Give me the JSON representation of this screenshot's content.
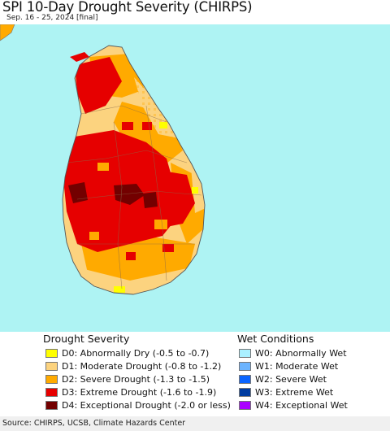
{
  "header": {
    "title": "SPI 10-Day Drought Severity (CHIRPS)",
    "subtitle": "Sep. 16 - 25, 2024 [final]"
  },
  "map": {
    "ocean_color": "#aef3f3",
    "dominant_classes": [
      "D3",
      "D2",
      "D1"
    ]
  },
  "legend": {
    "drought_title": "Drought Severity",
    "drought_items": [
      {
        "code": "D0",
        "label": "D0: Abnormally Dry (-0.5 to -0.7)",
        "color": "#ffff00"
      },
      {
        "code": "D1",
        "label": "D1: Moderate Drought (-0.8 to -1.2)",
        "color": "#fcd37f"
      },
      {
        "code": "D2",
        "label": "D2: Severe Drought (-1.3 to -1.5)",
        "color": "#ffaa00"
      },
      {
        "code": "D3",
        "label": "D3: Extreme Drought (-1.6 to -1.9)",
        "color": "#e60000"
      },
      {
        "code": "D4",
        "label": "D4: Exceptional Drought (-2.0 or less)",
        "color": "#730000"
      }
    ],
    "wet_title": "Wet Conditions",
    "wet_items": [
      {
        "code": "W0",
        "label": "W0: Abnormally Wet",
        "color": "#aaf0ff"
      },
      {
        "code": "W1",
        "label": "W1: Moderate Wet",
        "color": "#6cb4ff"
      },
      {
        "code": "W2",
        "label": "W2: Severe Wet",
        "color": "#0a64ff"
      },
      {
        "code": "W3",
        "label": "W3: Extreme Wet",
        "color": "#003ca0"
      },
      {
        "code": "W4",
        "label": "W4: Exceptional Wet",
        "color": "#aa00ff"
      }
    ]
  },
  "footer": {
    "source": "Source: CHIRPS, UCSB, Climate Hazards Center"
  }
}
